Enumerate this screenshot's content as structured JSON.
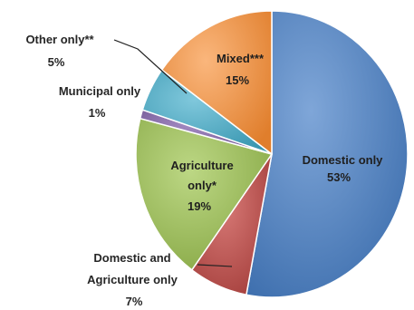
{
  "chart_data": {
    "type": "pie",
    "title": "",
    "slices": [
      {
        "label": "Domestic only",
        "percent_label": "53%",
        "value": 53,
        "color": "#4f81bd"
      },
      {
        "label": "Domestic and Agriculture only",
        "label_lines": [
          "Domestic and",
          "Agriculture only"
        ],
        "percent_label": "7%",
        "value": 7,
        "color": "#c0504d"
      },
      {
        "label": "Agriculture only*",
        "label_lines": [
          "Agriculture",
          "only*"
        ],
        "percent_label": "19%",
        "value": 19,
        "color": "#9bbb59"
      },
      {
        "label": "Municipal only",
        "percent_label": "1%",
        "value": 1,
        "color": "#8064a2"
      },
      {
        "label": "Other only**",
        "percent_label": "5%",
        "value": 5,
        "color": "#4bacc6"
      },
      {
        "label": "Mixed***",
        "percent_label": "15%",
        "value": 15,
        "color": "#f79646"
      }
    ],
    "legend": "none",
    "start_angle_deg": 0,
    "direction": "clockwise"
  }
}
